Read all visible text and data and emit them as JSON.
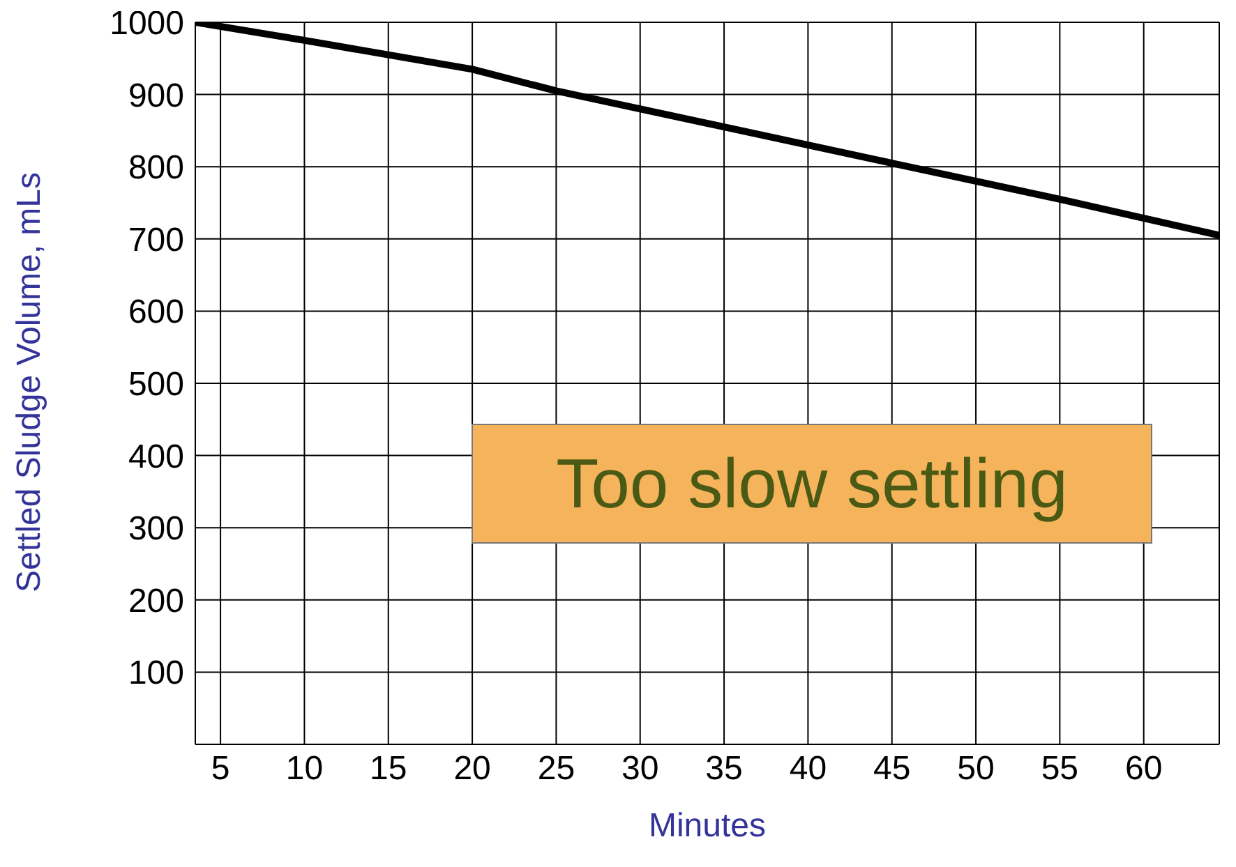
{
  "chart_data": {
    "type": "line",
    "xlabel": "Minutes",
    "ylabel": "Settled Sludge Volume, mLs",
    "x": [
      3.5,
      10,
      20,
      25,
      35,
      45,
      55,
      64.5
    ],
    "series": [
      {
        "color": "#000000",
        "values": [
          1000,
          975,
          935,
          905,
          855,
          805,
          755,
          705
        ]
      }
    ],
    "xlim": [
      3.5,
      64.5
    ],
    "xticks": [
      5,
      10,
      15,
      20,
      25,
      30,
      35,
      40,
      45,
      50,
      55,
      60
    ],
    "ylim": [
      0,
      1000
    ],
    "yticks": [
      100,
      200,
      300,
      400,
      500,
      600,
      700,
      800,
      900,
      1000
    ],
    "grid": true,
    "marker": "none",
    "line_style": "solid",
    "annotations": [
      "Too slow settling"
    ]
  }
}
